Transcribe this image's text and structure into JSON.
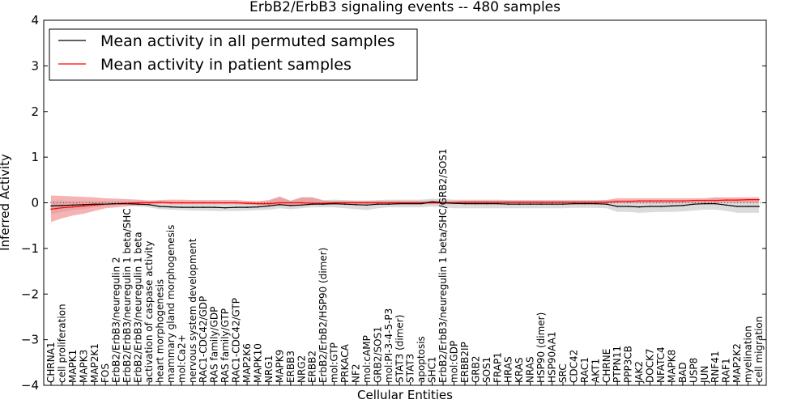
{
  "chart_data": {
    "type": "line",
    "title": "ErbB2/ErbB3 signaling events -- 480 samples",
    "xlabel": "Cellular Entities",
    "ylabel": "Inferred Activity",
    "ylim": [
      -4,
      4
    ],
    "yticks": [
      "−4",
      "−3",
      "−2",
      "−1",
      "0",
      "1",
      "2",
      "3",
      "4"
    ],
    "grid": false,
    "legend_position": "top-left",
    "colors": {
      "permuted": "#000000",
      "patient": "#ff0000",
      "patient_band": "#f08080",
      "permuted_band": "#bdbdbd"
    },
    "categories": [
      "CHRNA1",
      "cell proliferation",
      "MAPK1",
      "MAPK3",
      "MAP2K1",
      "FOS",
      "ErbB2/ErbB3/neuregulin 2",
      "ErbB2/ErbB3/neuregulin 1 beta/SHC",
      "ErbB2/ErbB3/neuregulin 1 beta",
      "activation of caspase activity",
      "heart morphogenesis",
      "mammary gland morphogenesis",
      "mol:Ca2+",
      "nervous system development",
      "RAC1-CDC42/GDP",
      "RAS family/GDP",
      "RAS family/GTP",
      "RAC1-CDC42/GTP",
      "MAP2K6",
      "MAPK10",
      "NRG1",
      "MAPK9",
      "ERBB3",
      "NRG2",
      "ERBB2",
      "ErbB2/ErbB2/HSP90 (dimer)",
      "mol:GTP",
      "PRKACA",
      "NF2",
      "mol:cAMP",
      "GRB2/SOS1",
      "mol:PI-3-4-5-P3",
      "STAT3 (dimer)",
      "STAT3",
      "apoptosis",
      "SHC1",
      "ErbB2/ErbB3/neuregulin 1 beta/SHC/GRB2/SOS1",
      "mol:GDP",
      "ERBB2IP",
      "GRB2",
      "SOS1",
      "FRAP1",
      "HRAS",
      "KRAS",
      "NRAS",
      "HSP90 (dimer)",
      "HSP90AA1",
      "SRC",
      "CDC42",
      "RAC1",
      "AKT1",
      "CHRNE",
      "PTPN11",
      "PPP3CB",
      "JAK2",
      "DOCK7",
      "NFATC4",
      "MAPK8",
      "BAD",
      "USP8",
      "JUN",
      "RNF41",
      "RAF1",
      "MAP2K2",
      "myelination",
      "cell migration"
    ],
    "series": [
      {
        "name": "Mean activity in all permuted samples",
        "values": [
          -0.07,
          -0.06,
          -0.05,
          -0.04,
          -0.03,
          -0.03,
          -0.02,
          -0.02,
          -0.03,
          -0.04,
          -0.08,
          -0.09,
          -0.1,
          -0.1,
          -0.1,
          -0.1,
          -0.11,
          -0.1,
          -0.1,
          -0.09,
          -0.07,
          -0.04,
          -0.06,
          -0.05,
          -0.03,
          -0.03,
          -0.02,
          -0.03,
          -0.04,
          -0.05,
          -0.03,
          -0.03,
          -0.02,
          -0.02,
          -0.02,
          0.02,
          0.0,
          -0.01,
          -0.02,
          -0.02,
          -0.02,
          -0.02,
          -0.03,
          -0.03,
          -0.03,
          -0.03,
          -0.03,
          -0.03,
          -0.02,
          -0.02,
          -0.02,
          -0.03,
          -0.08,
          -0.08,
          -0.09,
          -0.08,
          -0.08,
          -0.07,
          -0.06,
          -0.03,
          -0.02,
          -0.02,
          -0.05,
          -0.08,
          -0.08,
          -0.08
        ],
        "lower": [
          -0.25,
          -0.2,
          -0.16,
          -0.14,
          -0.1,
          -0.08,
          -0.05,
          -0.04,
          -0.08,
          -0.1,
          -0.14,
          -0.15,
          -0.16,
          -0.17,
          -0.17,
          -0.18,
          -0.18,
          -0.18,
          -0.17,
          -0.16,
          -0.15,
          -0.12,
          -0.14,
          -0.12,
          -0.1,
          -0.1,
          -0.1,
          -0.12,
          -0.14,
          -0.16,
          -0.12,
          -0.1,
          -0.1,
          -0.1,
          -0.1,
          -0.08,
          -0.1,
          -0.12,
          -0.12,
          -0.12,
          -0.12,
          -0.12,
          -0.12,
          -0.12,
          -0.12,
          -0.12,
          -0.12,
          -0.12,
          -0.11,
          -0.11,
          -0.11,
          -0.12,
          -0.2,
          -0.2,
          -0.22,
          -0.21,
          -0.2,
          -0.2,
          -0.19,
          -0.17,
          -0.15,
          -0.15,
          -0.18,
          -0.22,
          -0.22,
          -0.22
        ],
        "upper": [
          0.05,
          0.05,
          0.04,
          0.04,
          0.04,
          0.04,
          0.04,
          0.04,
          0.04,
          0.04,
          0.02,
          0.02,
          0.02,
          0.02,
          0.02,
          0.02,
          0.01,
          0.02,
          0.02,
          0.03,
          0.04,
          0.12,
          0.05,
          0.12,
          0.12,
          0.06,
          0.07,
          0.06,
          0.05,
          0.05,
          0.06,
          0.07,
          0.07,
          0.07,
          0.07,
          0.09,
          0.08,
          0.07,
          0.07,
          0.07,
          0.07,
          0.07,
          0.06,
          0.06,
          0.06,
          0.06,
          0.06,
          0.06,
          0.06,
          0.06,
          0.06,
          0.06,
          0.06,
          0.06,
          0.06,
          0.06,
          0.06,
          0.06,
          0.06,
          0.07,
          0.08,
          0.1,
          0.08,
          0.07,
          0.07,
          0.07
        ]
      },
      {
        "name": "Mean activity in patient samples",
        "values": [
          -0.14,
          -0.11,
          -0.09,
          -0.07,
          -0.05,
          -0.03,
          -0.02,
          -0.01,
          0.0,
          0.0,
          0.01,
          0.0,
          0.0,
          0.0,
          0.0,
          0.0,
          0.0,
          0.0,
          -0.01,
          -0.02,
          -0.02,
          0.0,
          0.0,
          0.0,
          -0.01,
          -0.01,
          0.0,
          0.0,
          0.0,
          0.0,
          0.0,
          0.0,
          0.0,
          0.0,
          0.0,
          0.0,
          0.0,
          0.0,
          0.01,
          0.01,
          0.01,
          0.01,
          0.01,
          0.01,
          0.01,
          0.01,
          0.01,
          0.01,
          0.01,
          0.01,
          0.01,
          0.01,
          0.03,
          0.03,
          0.04,
          0.04,
          0.04,
          0.04,
          0.04,
          0.05,
          0.05,
          0.05,
          0.06,
          0.06,
          0.07,
          0.07
        ],
        "lower": [
          -0.42,
          -0.34,
          -0.28,
          -0.24,
          -0.18,
          -0.12,
          -0.1,
          -0.08,
          -0.06,
          -0.04,
          -0.02,
          -0.03,
          -0.03,
          -0.03,
          -0.03,
          -0.03,
          -0.03,
          -0.03,
          -0.04,
          -0.05,
          -0.05,
          -0.05,
          -0.05,
          -0.04,
          -0.04,
          -0.04,
          -0.03,
          -0.03,
          -0.03,
          -0.03,
          -0.03,
          -0.03,
          -0.03,
          -0.03,
          -0.03,
          -0.03,
          -0.03,
          -0.03,
          -0.02,
          -0.02,
          -0.02,
          -0.02,
          -0.02,
          -0.02,
          -0.02,
          -0.02,
          -0.02,
          -0.02,
          -0.02,
          -0.02,
          -0.02,
          -0.02,
          -0.01,
          -0.01,
          -0.01,
          -0.01,
          -0.01,
          -0.01,
          -0.01,
          0.0,
          0.0,
          0.0,
          0.0,
          0.0,
          0.0,
          0.0
        ],
        "upper": [
          0.16,
          0.15,
          0.14,
          0.13,
          0.12,
          0.1,
          0.09,
          0.08,
          0.07,
          0.05,
          0.06,
          0.07,
          0.07,
          0.06,
          0.06,
          0.06,
          0.06,
          0.06,
          0.04,
          0.03,
          0.06,
          0.14,
          0.04,
          0.12,
          0.12,
          0.05,
          0.04,
          0.04,
          0.04,
          0.04,
          0.04,
          0.04,
          0.04,
          0.04,
          0.04,
          0.05,
          0.04,
          0.05,
          0.05,
          0.05,
          0.05,
          0.05,
          0.05,
          0.05,
          0.05,
          0.05,
          0.05,
          0.05,
          0.05,
          0.05,
          0.05,
          0.06,
          0.1,
          0.1,
          0.1,
          0.1,
          0.1,
          0.1,
          0.1,
          0.1,
          0.1,
          0.12,
          0.12,
          0.12,
          0.12,
          0.12
        ]
      }
    ]
  }
}
